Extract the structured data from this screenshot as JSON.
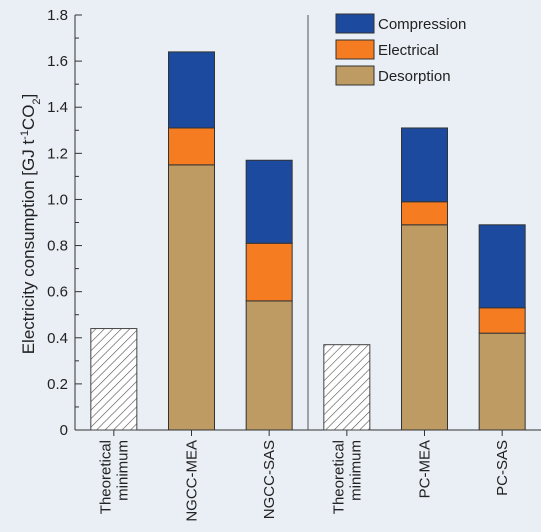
{
  "chart_data": {
    "type": "bar",
    "stacked": true,
    "ylabel_parts": [
      "Electricity consumption [GJ t",
      "-1",
      "CO",
      "2",
      "]"
    ],
    "ylim": [
      0,
      1.8
    ],
    "yticks": [
      "0",
      "0.2",
      "0.4",
      "0.6",
      "0.8",
      "1.0",
      "1.2",
      "1.4",
      "1.6",
      "1.8"
    ],
    "ytick_values": [
      0,
      0.2,
      0.4,
      0.6,
      0.8,
      1.0,
      1.2,
      1.4,
      1.6,
      1.8
    ],
    "categories": [
      [
        "Theoretical",
        "minimum"
      ],
      [
        "NGCC-MEA"
      ],
      [
        "NGCC-SAS"
      ],
      [
        "Theoretical",
        "minimum"
      ],
      [
        "PC-MEA"
      ],
      [
        "PC-SAS"
      ]
    ],
    "theoretical_minimum": [
      0.44,
      null,
      null,
      0.37,
      null,
      null
    ],
    "series": [
      {
        "name": "Desorption",
        "color": "#bd9b63",
        "values": [
          0,
          1.15,
          0.56,
          0,
          0.89,
          0.42
        ]
      },
      {
        "name": "Electrical",
        "color": "#f57c20",
        "values": [
          0,
          0.16,
          0.25,
          0,
          0.1,
          0.11
        ]
      },
      {
        "name": "Compression",
        "color": "#1c4a9f",
        "values": [
          0,
          0.33,
          0.36,
          0,
          0.32,
          0.36
        ]
      }
    ],
    "legend_order": [
      "Compression",
      "Electrical",
      "Desorption"
    ],
    "legend_position": "top-right",
    "divider_after_category": 2,
    "grid": false
  }
}
